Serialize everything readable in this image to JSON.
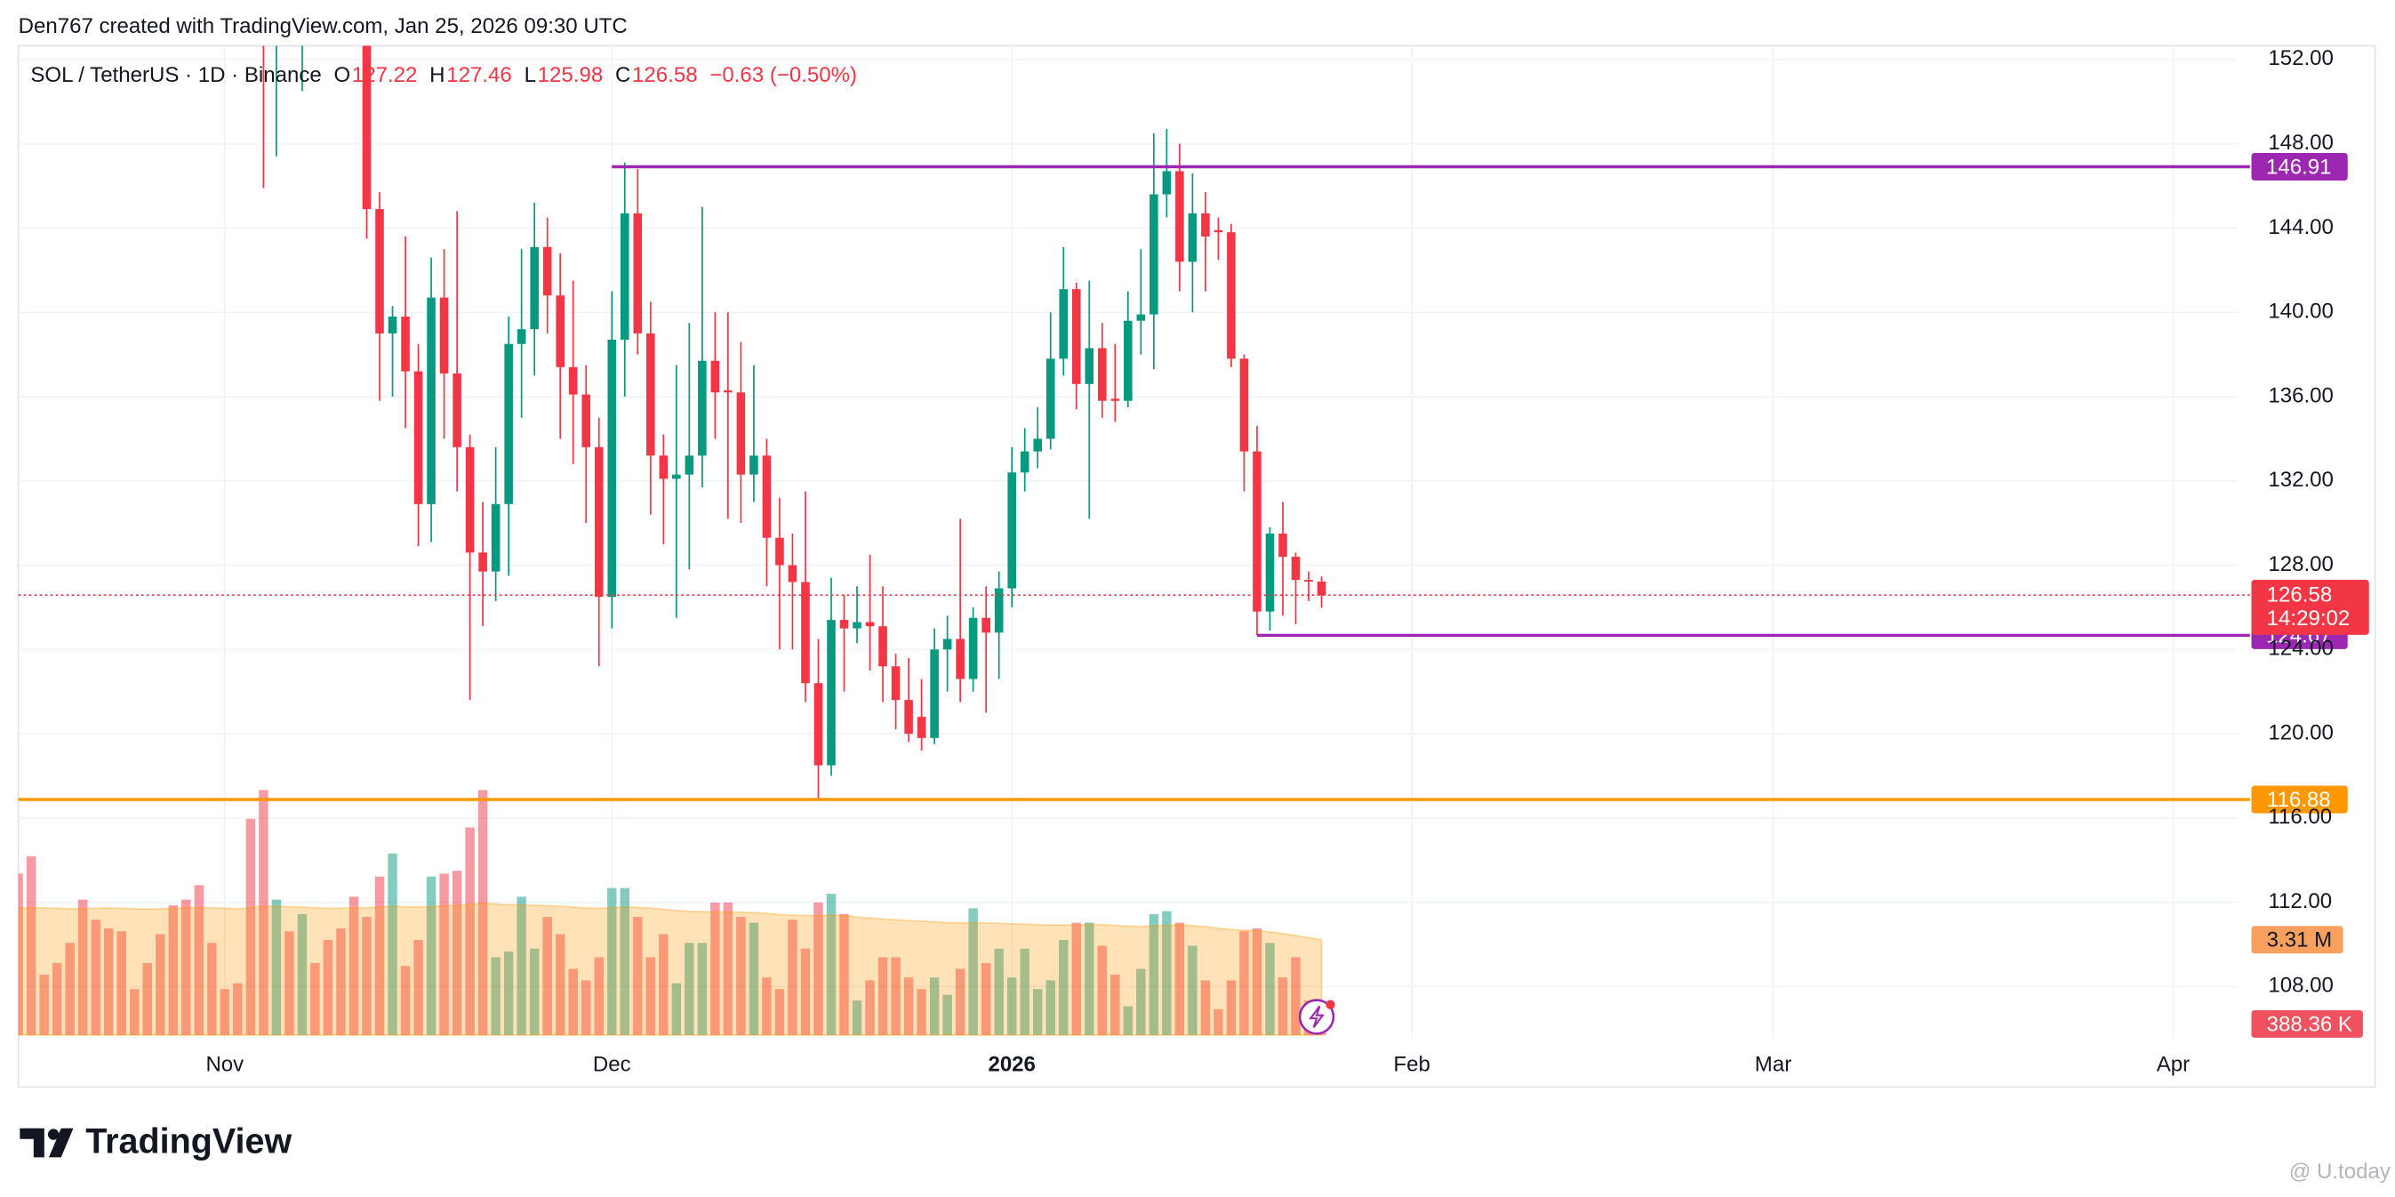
{
  "attribution": "Den767 created with TradingView.com, Jan 25, 2026 09:30 UTC",
  "brand": "TradingView",
  "watermark": "@ U.today",
  "chart_data": {
    "type": "candlestick",
    "title": "SOL / TetherUS · 1D · Binance",
    "ohlc_labels": [
      "O",
      "H",
      "L",
      "C"
    ],
    "change_label": "−0.63 (−0.50%)",
    "countdown": "14:29:02",
    "up_color": "#089981",
    "down_color": "#f23645",
    "x": [
      "2025-10-16",
      "2025-10-17",
      "2025-10-18",
      "2025-10-19",
      "2025-10-20",
      "2025-10-21",
      "2025-10-22",
      "2025-10-23",
      "2025-10-24",
      "2025-10-25",
      "2025-10-26",
      "2025-10-27",
      "2025-10-28",
      "2025-10-29",
      "2025-10-30",
      "2025-10-31",
      "2025-11-01",
      "2025-11-02",
      "2025-11-03",
      "2025-11-04",
      "2025-11-05",
      "2025-11-06",
      "2025-11-07",
      "2025-11-08",
      "2025-11-09",
      "2025-11-10",
      "2025-11-11",
      "2025-11-12",
      "2025-11-13",
      "2025-11-14",
      "2025-11-15",
      "2025-11-16",
      "2025-11-17",
      "2025-11-18",
      "2025-11-19",
      "2025-11-20",
      "2025-11-21",
      "2025-11-22",
      "2025-11-23",
      "2025-11-24",
      "2025-11-25",
      "2025-11-26",
      "2025-11-27",
      "2025-11-28",
      "2025-11-29",
      "2025-11-30",
      "2025-12-01",
      "2025-12-02",
      "2025-12-03",
      "2025-12-04",
      "2025-12-05",
      "2025-12-06",
      "2025-12-07",
      "2025-12-08",
      "2025-12-09",
      "2025-12-10",
      "2025-12-11",
      "2025-12-12",
      "2025-12-13",
      "2025-12-14",
      "2025-12-15",
      "2025-12-16",
      "2025-12-17",
      "2025-12-18",
      "2025-12-19",
      "2025-12-20",
      "2025-12-21",
      "2025-12-22",
      "2025-12-23",
      "2025-12-24",
      "2025-12-25",
      "2025-12-26",
      "2025-12-27",
      "2025-12-28",
      "2025-12-29",
      "2025-12-30",
      "2025-12-31",
      "2026-01-01",
      "2026-01-02",
      "2026-01-03",
      "2026-01-04",
      "2026-01-05",
      "2026-01-06",
      "2026-01-07",
      "2026-01-08",
      "2026-01-09",
      "2026-01-10",
      "2026-01-11",
      "2026-01-12",
      "2026-01-13",
      "2026-01-14",
      "2026-01-15",
      "2026-01-16",
      "2026-01-17",
      "2026-01-18",
      "2026-01-19",
      "2026-01-20",
      "2026-01-21",
      "2026-01-22",
      "2026-01-23",
      "2026-01-24",
      "2026-01-25"
    ],
    "open": [
      null,
      null,
      null,
      null,
      null,
      null,
      null,
      null,
      null,
      null,
      null,
      null,
      null,
      null,
      null,
      null,
      null,
      null,
      null,
      158,
      155.5,
      null,
      153,
      null,
      null,
      null,
      null,
      155,
      144.9,
      139.0,
      139.8,
      137.2,
      130.9,
      140.7,
      137.1,
      133.6,
      128.6,
      127.7,
      130.9,
      138.5,
      139.2,
      143.1,
      140.8,
      137.4,
      136.1,
      133.6,
      126.5,
      138.7,
      144.7,
      139.0,
      133.2,
      132.1,
      132.3,
      133.2,
      137.7,
      136.3,
      136.2,
      132.3,
      133.2,
      129.3,
      128.0,
      127.2,
      122.4,
      118.5,
      125.4,
      125.0,
      125.3,
      125.1,
      123.2,
      121.6,
      120.8,
      119.8,
      124.0,
      124.5,
      122.6,
      125.5,
      124.8,
      126.9,
      132.4,
      133.4,
      134.0,
      137.8,
      141.1,
      136.6,
      138.3,
      135.9,
      135.8,
      139.6,
      139.9,
      145.6,
      146.7,
      142.4,
      144.7,
      143.9,
      143.8,
      137.8,
      133.4,
      125.8,
      129.5,
      128.4,
      127.3,
      127.22
    ],
    "high": [
      null,
      null,
      null,
      null,
      null,
      null,
      null,
      null,
      null,
      null,
      null,
      null,
      null,
      null,
      null,
      null,
      null,
      null,
      null,
      162,
      160,
      null,
      156,
      null,
      null,
      null,
      null,
      156,
      145.7,
      140.3,
      143.6,
      138.5,
      142.6,
      143.0,
      144.8,
      134.2,
      131.0,
      133.6,
      139.8,
      143.0,
      145.2,
      144.5,
      142.8,
      141.5,
      137.5,
      135.0,
      141.0,
      147.1,
      146.8,
      140.5,
      134.2,
      137.5,
      139.5,
      145.0,
      140.0,
      140.0,
      138.6,
      137.5,
      134.0,
      131.2,
      129.5,
      131.5,
      124.5,
      127.4,
      126.6,
      127.0,
      128.5,
      127.0,
      123.8,
      123.6,
      122.6,
      125.0,
      125.6,
      130.2,
      126.0,
      127.0,
      127.7,
      133.6,
      134.5,
      135.5,
      140.0,
      143.1,
      141.4,
      141.5,
      139.5,
      138.5,
      141.0,
      143.0,
      148.5,
      148.7,
      148.0,
      146.6,
      145.7,
      144.5,
      144.2,
      138.0,
      134.6,
      129.8,
      131.0,
      128.6,
      127.7,
      127.46
    ],
    "low": [
      null,
      null,
      null,
      null,
      null,
      null,
      null,
      null,
      null,
      null,
      null,
      null,
      null,
      null,
      null,
      null,
      null,
      null,
      null,
      145.9,
      147.4,
      null,
      150.5,
      null,
      null,
      null,
      null,
      143.5,
      135.8,
      136.0,
      134.5,
      128.9,
      129.1,
      134.0,
      131.5,
      121.6,
      125.1,
      126.3,
      127.5,
      135.0,
      137.0,
      139.0,
      134.0,
      132.8,
      130.0,
      123.2,
      125.0,
      136.0,
      138.0,
      130.4,
      129.0,
      125.5,
      127.8,
      131.7,
      134.0,
      130.2,
      130.0,
      131.0,
      127.0,
      124.0,
      124.0,
      121.5,
      116.88,
      118.0,
      122.0,
      124.3,
      123.0,
      121.5,
      120.2,
      119.6,
      119.2,
      119.5,
      122.0,
      121.5,
      122.0,
      121.0,
      122.6,
      126.0,
      131.5,
      132.6,
      133.5,
      137.0,
      135.4,
      130.2,
      135.0,
      134.8,
      135.5,
      138.0,
      137.3,
      144.5,
      141.0,
      140.0,
      141.0,
      142.5,
      137.4,
      131.5,
      124.67,
      124.9,
      125.6,
      125.2,
      126.3,
      125.98
    ],
    "close": [
      null,
      null,
      null,
      null,
      null,
      null,
      null,
      null,
      null,
      null,
      null,
      null,
      null,
      null,
      null,
      null,
      null,
      null,
      null,
      155.5,
      156,
      null,
      154,
      null,
      null,
      null,
      null,
      144.9,
      139.0,
      139.8,
      137.2,
      130.9,
      140.7,
      137.1,
      133.6,
      128.6,
      127.7,
      130.9,
      138.5,
      139.2,
      143.1,
      140.8,
      137.4,
      136.1,
      133.6,
      126.5,
      138.7,
      144.7,
      139.0,
      133.2,
      132.1,
      132.3,
      133.2,
      137.7,
      136.2,
      136.2,
      132.3,
      133.2,
      129.3,
      128.0,
      127.2,
      122.4,
      118.5,
      125.4,
      125.0,
      125.3,
      125.1,
      123.2,
      121.6,
      120.0,
      119.8,
      124.0,
      124.5,
      122.6,
      125.5,
      124.8,
      126.9,
      132.4,
      133.4,
      134.0,
      137.8,
      141.1,
      136.6,
      138.3,
      135.8,
      135.8,
      139.6,
      139.9,
      145.6,
      146.7,
      142.4,
      144.7,
      143.6,
      143.8,
      137.8,
      133.4,
      125.8,
      129.5,
      128.4,
      127.3,
      127.22,
      126.58
    ],
    "volume": [
      5.6,
      6.2,
      2.1,
      2.5,
      3.2,
      4.7,
      4.0,
      3.7,
      3.6,
      1.6,
      2.5,
      3.5,
      4.5,
      4.7,
      5.2,
      3.2,
      1.6,
      1.8,
      7.5,
      8.5,
      4.7,
      3.6,
      4.2,
      2.5,
      3.3,
      3.7,
      4.8,
      4.1,
      5.5,
      6.3,
      2.4,
      3.3,
      5.5,
      5.6,
      5.7,
      7.2,
      8.5,
      2.7,
      2.9,
      4.8,
      3.0,
      4.1,
      3.5,
      2.3,
      1.9,
      2.7,
      5.1,
      5.1,
      4.1,
      2.7,
      3.5,
      1.8,
      3.2,
      3.2,
      4.6,
      4.6,
      4.1,
      3.9,
      2.0,
      1.6,
      4.0,
      3.0,
      4.6,
      4.9,
      4.2,
      1.2,
      1.9,
      2.7,
      2.7,
      2.0,
      1.6,
      2.0,
      1.4,
      2.3,
      4.4,
      2.5,
      3.0,
      2.0,
      3.0,
      1.6,
      1.9,
      3.3,
      3.9,
      3.9,
      3.1,
      2.1,
      1.0,
      2.3,
      4.2,
      4.3,
      3.9,
      3.1,
      1.9,
      0.9,
      1.9,
      3.6,
      3.7,
      3.2,
      2.0,
      2.7,
      1.2,
      0.38836
    ],
    "volume_ma": [
      4.4,
      4.41,
      4.42,
      4.4,
      4.38,
      4.39,
      4.4,
      4.41,
      4.4,
      4.38,
      4.37,
      4.38,
      4.4,
      4.42,
      4.43,
      4.42,
      4.4,
      4.38,
      4.42,
      4.48,
      4.47,
      4.45,
      4.44,
      4.42,
      4.4,
      4.4,
      4.41,
      4.42,
      4.44,
      4.47,
      4.45,
      4.44,
      4.46,
      4.48,
      4.5,
      4.53,
      4.58,
      4.55,
      4.52,
      4.52,
      4.5,
      4.49,
      4.47,
      4.44,
      4.41,
      4.4,
      4.42,
      4.44,
      4.43,
      4.4,
      4.36,
      4.32,
      4.29,
      4.28,
      4.27,
      4.27,
      4.26,
      4.25,
      4.22,
      4.18,
      4.16,
      4.15,
      4.15,
      4.16,
      4.15,
      4.1,
      4.06,
      4.03,
      4.0,
      3.97,
      3.95,
      3.93,
      3.9,
      3.89,
      3.9,
      3.89,
      3.88,
      3.86,
      3.85,
      3.83,
      3.82,
      3.82,
      3.83,
      3.84,
      3.83,
      3.81,
      3.78,
      3.77,
      3.79,
      3.81,
      3.82,
      3.8,
      3.76,
      3.71,
      3.66,
      3.64,
      3.62,
      3.58,
      3.52,
      3.45,
      3.38,
      3.31
    ],
    "volume_value_label": "388.36 K",
    "volume_ma_label": "3.31 M",
    "volume_ma_color": "#ff9800",
    "volume_ylim": [
      0,
      9
    ],
    "levels": [
      {
        "value": 146.91,
        "color": "#9c27b0",
        "from": "2025-12-01"
      },
      {
        "value": 124.67,
        "color": "#9c27b0",
        "from": "2026-01-20"
      },
      {
        "value": 116.88,
        "color": "#ff9800"
      }
    ],
    "xlim": [
      "2025-10-16",
      "2026-04-06"
    ],
    "xticks": [
      {
        "value": "2025-11-01",
        "label": "Nov"
      },
      {
        "value": "2025-12-01",
        "label": "Dec"
      },
      {
        "value": "2026-01-01",
        "label": "2026"
      },
      {
        "value": "2026-02-01",
        "label": "Feb"
      },
      {
        "value": "2026-03-01",
        "label": "Mar"
      },
      {
        "value": "2026-04-01",
        "label": "Apr"
      }
    ],
    "ylim": [
      105.55,
      152.65
    ],
    "yticks": [
      {
        "value": 108,
        "label": "108.00"
      },
      {
        "value": 112,
        "label": "112.00"
      },
      {
        "value": 116,
        "label": "116.00"
      },
      {
        "value": 120,
        "label": "120.00"
      },
      {
        "value": 124,
        "label": "124.00"
      },
      {
        "value": 128,
        "label": "128.00"
      },
      {
        "value": 132,
        "label": "132.00"
      },
      {
        "value": 136,
        "label": "136.00"
      },
      {
        "value": 140,
        "label": "140.00"
      },
      {
        "value": 144,
        "label": "144.00"
      },
      {
        "value": 148,
        "label": "148.00"
      },
      {
        "value": 152,
        "label": "152.00"
      }
    ],
    "grid": true
  }
}
